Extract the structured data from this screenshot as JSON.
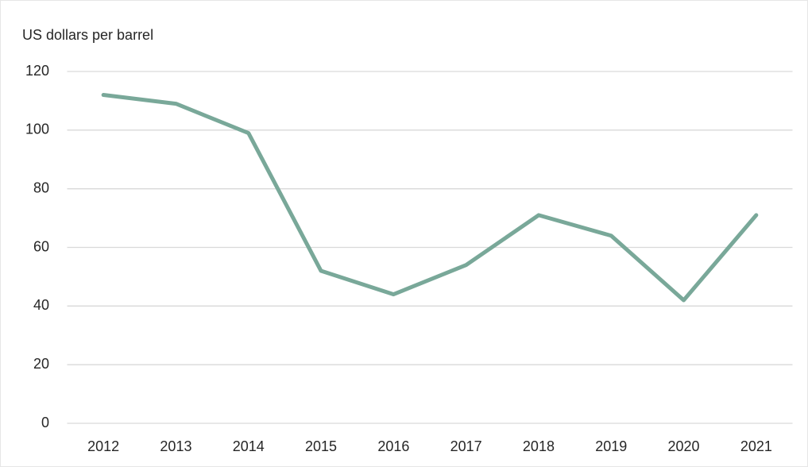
{
  "chart_data": {
    "type": "line",
    "y_label": "US dollars per barrel",
    "categories": [
      "2012",
      "2013",
      "2014",
      "2015",
      "2016",
      "2017",
      "2018",
      "2019",
      "2020",
      "2021"
    ],
    "values": [
      112,
      109,
      99,
      52,
      44,
      54,
      71,
      64,
      42,
      71
    ],
    "color": "#79a899",
    "ylim": [
      0,
      120
    ],
    "yticks": [
      0,
      20,
      40,
      60,
      80,
      100,
      120
    ],
    "grid": true
  }
}
